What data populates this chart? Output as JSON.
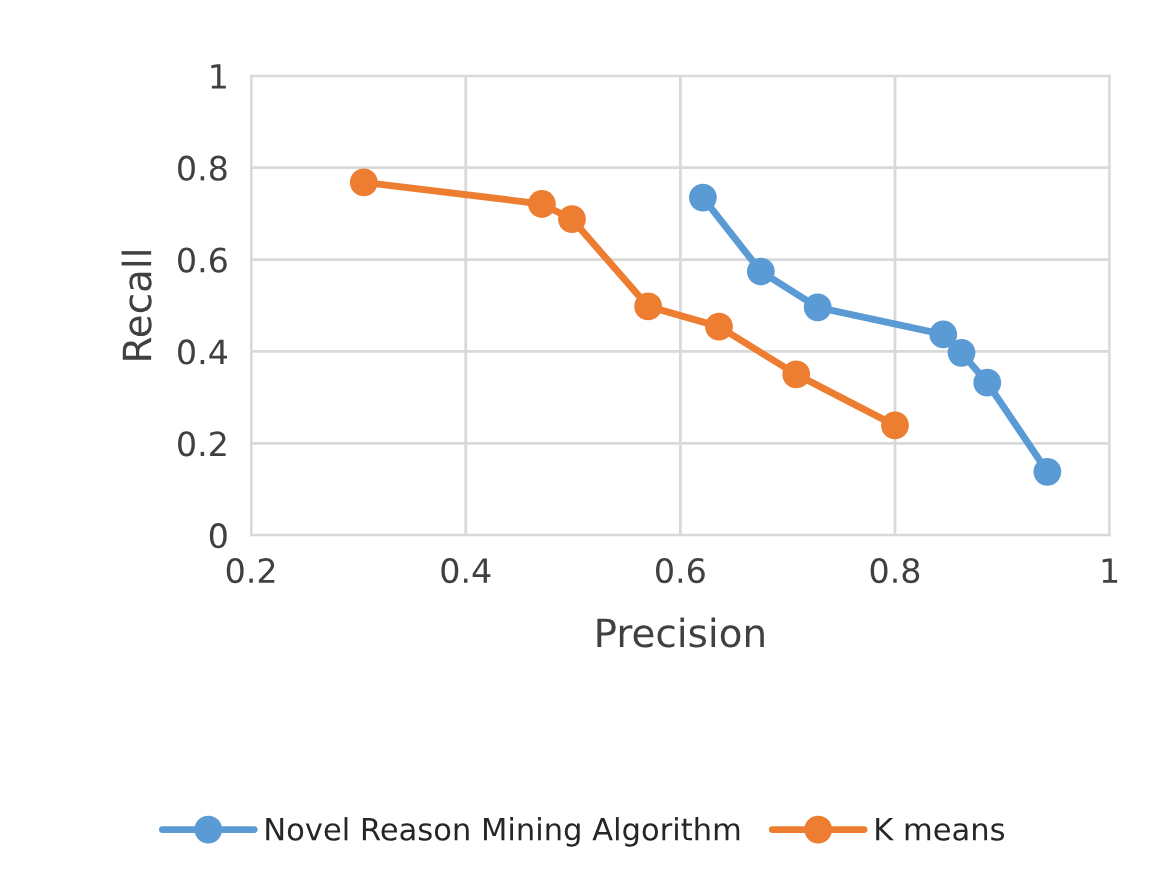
{
  "chart_data": {
    "type": "line",
    "xlabel": "Precision",
    "ylabel": "Recall",
    "series": [
      {
        "name": "Novel Reason Mining Algorithm",
        "color": "#5b9bd5",
        "x": [
          0.621,
          0.675,
          0.728,
          0.845,
          0.862,
          0.886,
          0.942
        ],
        "values": [
          0.735,
          0.574,
          0.496,
          0.437,
          0.397,
          0.332,
          0.138
        ]
      },
      {
        "name": "K means",
        "color": "#ed7d31",
        "x": [
          0.305,
          0.471,
          0.499,
          0.57,
          0.636,
          0.708,
          0.8
        ],
        "values": [
          0.768,
          0.721,
          0.688,
          0.498,
          0.454,
          0.35,
          0.239
        ]
      }
    ],
    "xlim": [
      0.2,
      1
    ],
    "xticks": [
      {
        "value": 0.2,
        "label": "0.2"
      },
      {
        "value": 0.4,
        "label": "0.4"
      },
      {
        "value": 0.6,
        "label": "0.6"
      },
      {
        "value": 0.8,
        "label": "0.8"
      },
      {
        "value": 1,
        "label": "1"
      }
    ],
    "ylim": [
      0,
      1
    ],
    "yticks": [
      {
        "value": 0,
        "label": "0"
      },
      {
        "value": 0.2,
        "label": "0.2"
      },
      {
        "value": 0.4,
        "label": "0.4"
      },
      {
        "value": 0.6,
        "label": "0.6"
      },
      {
        "value": 0.8,
        "label": "0.8"
      },
      {
        "value": 1,
        "label": "1"
      }
    ],
    "grid": true,
    "legend": "bottom",
    "marker": "circle",
    "line_style": "solid"
  }
}
